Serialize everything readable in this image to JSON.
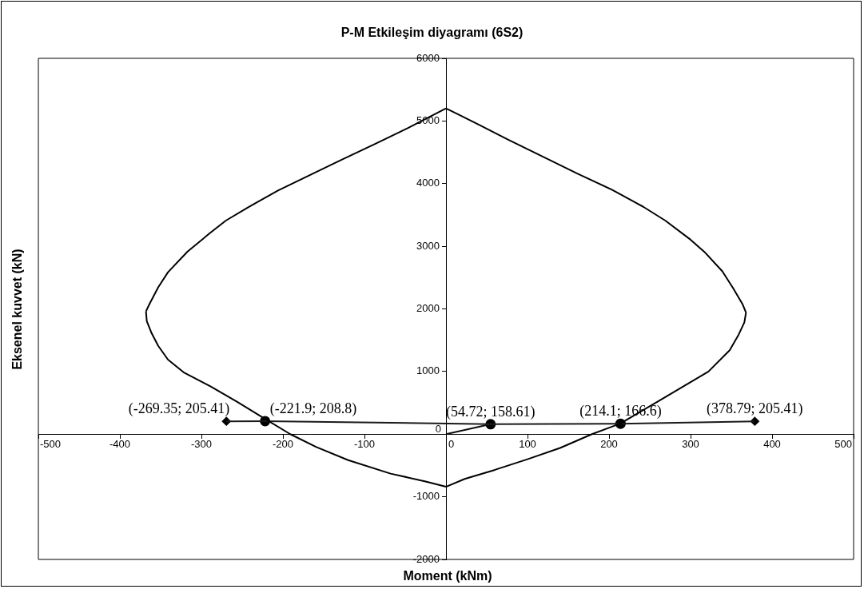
{
  "chart_data": {
    "type": "line",
    "title": "P-M Etkileşim diyagramı (6S2)",
    "xlabel": "Moment (kNm)",
    "ylabel": "Eksenel kuvvet (kN)",
    "xlim": [
      -500,
      500
    ],
    "xticks": [
      -500,
      -400,
      -300,
      -200,
      -100,
      0,
      100,
      200,
      300,
      400,
      500
    ],
    "ylim": [
      -2000,
      6000
    ],
    "yticks": [
      -2000,
      -1000,
      0,
      1000,
      2000,
      3000,
      4000,
      5000,
      6000
    ],
    "legend": false,
    "grid": false,
    "series": [
      {
        "marker": "none",
        "color": "#000000",
        "x": [
          0,
          -47,
          -86,
          -128,
          -163,
          -206,
          -243,
          -270,
          -290,
          -317,
          -341,
          -353,
          -364,
          -368
        ],
        "values": [
          5200,
          4885,
          4640,
          4380,
          4160,
          3890,
          3620,
          3410,
          3205,
          2915,
          2585,
          2345,
          2070,
          1960
        ]
      },
      {
        "marker": "none",
        "color": "#000000",
        "x": [
          -368,
          -367,
          -361,
          -353,
          -341,
          -321,
          -289,
          -256,
          -224,
          -191,
          -159,
          -120,
          -68,
          -25,
          0
        ],
        "values": [
          1960,
          1805,
          1610,
          1410,
          1190,
          980,
          765,
          515,
          260,
          0,
          -205,
          -415,
          -630,
          -755,
          -840
        ]
      },
      {
        "marker": "none",
        "color": "#000000",
        "x": [
          0,
          23,
          60,
          100,
          140,
          179,
          214,
          257,
          322,
          348,
          359,
          366,
          368
        ],
        "values": [
          -840,
          -715,
          -570,
          -400,
          -220,
          0,
          170,
          500,
          1000,
          1340,
          1590,
          1785,
          1940
        ]
      },
      {
        "marker": "none",
        "color": "#000000",
        "x": [
          368,
          364,
          352,
          339,
          317,
          300,
          269,
          242,
          204,
          161,
          111,
          75,
          41,
          15,
          0
        ],
        "values": [
          1940,
          2070,
          2335,
          2600,
          2910,
          3105,
          3410,
          3630,
          3900,
          4160,
          4480,
          4710,
          4935,
          5105,
          5200
        ]
      },
      {
        "marker": "none",
        "color": "#1a1a1a",
        "x": [
          -269.35,
          -221.9,
          54.72,
          214.1,
          378.79
        ],
        "values": [
          205.41,
          208.8,
          158.61,
          166.6,
          205.41
        ]
      },
      {
        "marker": "none",
        "color": "#0d0d0d",
        "x": [
          0,
          54.72
        ],
        "values": [
          0,
          158.61
        ]
      },
      {
        "type": "scatter",
        "marker": "diamond",
        "color": "#000000",
        "x": [
          -269.35,
          378.79
        ],
        "values": [
          205.41,
          205.41
        ]
      },
      {
        "type": "scatter",
        "marker": "circle",
        "color": "#000000",
        "x": [
          -221.9,
          214.1
        ],
        "values": [
          208.8,
          166.6
        ]
      },
      {
        "type": "scatter",
        "marker": "circle",
        "color": "#000000",
        "x": [
          54.72
        ],
        "values": [
          158.61
        ]
      }
    ],
    "annotations": [
      {
        "text": "(-269.35; 205.41)",
        "x": -269.35,
        "y": 205.41
      },
      {
        "text": "(-221.9; 208.8)",
        "x": -221.9,
        "y": 208.8
      },
      {
        "text": "(54.72; 158.61)",
        "x": 54.72,
        "y": 158.61
      },
      {
        "text": "(214.1; 166.6)",
        "x": 214.1,
        "y": 166.6
      },
      {
        "text": "(378.79; 205.41)",
        "x": 378.79,
        "y": 205.41
      }
    ]
  }
}
